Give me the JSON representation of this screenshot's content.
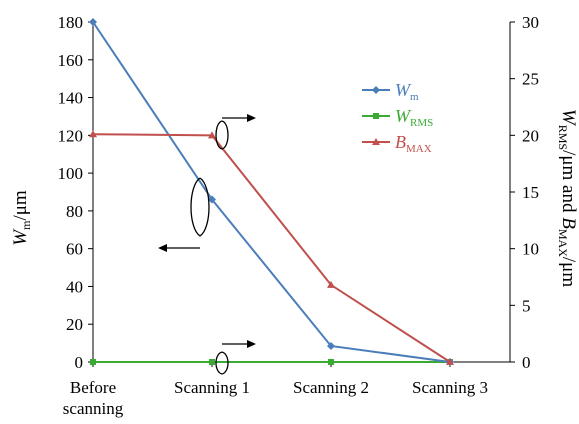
{
  "chart_data": {
    "type": "line",
    "categories": [
      "Before scanning",
      "Scanning 1",
      "Scanning 2",
      "Scanning 3"
    ],
    "category_lines": [
      [
        "Before",
        "scanning"
      ],
      [
        "Scanning 1"
      ],
      [
        "Scanning 2"
      ],
      [
        "Scanning 3"
      ]
    ],
    "y_left": {
      "label_main": "W",
      "label_sub": "m",
      "label_rest": "/μm",
      "range": [
        0,
        180
      ],
      "ticks": [
        "0",
        "20",
        "40",
        "60",
        "80",
        "100",
        "120",
        "140",
        "160",
        "180"
      ]
    },
    "y_right": {
      "label_parts": [
        {
          "t": "W",
          "italic": true
        },
        {
          "t": "RMS",
          "sub": true
        },
        {
          "t": "/μm and "
        },
        {
          "t": "B",
          "italic": true
        },
        {
          "t": "MAX",
          "sub": true
        },
        {
          "t": "/μm"
        }
      ],
      "range": [
        0,
        30
      ],
      "ticks": [
        "0",
        "5",
        "10",
        "15",
        "20",
        "25",
        "30"
      ]
    },
    "series": [
      {
        "name": "W",
        "name_sub": "m",
        "axis": "left",
        "color": "#4a7ebb",
        "marker": "diamond",
        "values": [
          180,
          86,
          8.5,
          0
        ]
      },
      {
        "name": "W",
        "name_sub": "RMS",
        "axis": "right",
        "color": "#3aaa35",
        "marker": "square",
        "values": [
          0,
          0,
          0,
          0
        ]
      },
      {
        "name": "B",
        "name_sub": "MAX",
        "axis": "right",
        "color": "#c0504d",
        "marker": "triangle",
        "values": [
          20.1,
          20.0,
          6.8,
          0
        ]
      }
    ],
    "legend_placement": "right",
    "grid": false
  }
}
